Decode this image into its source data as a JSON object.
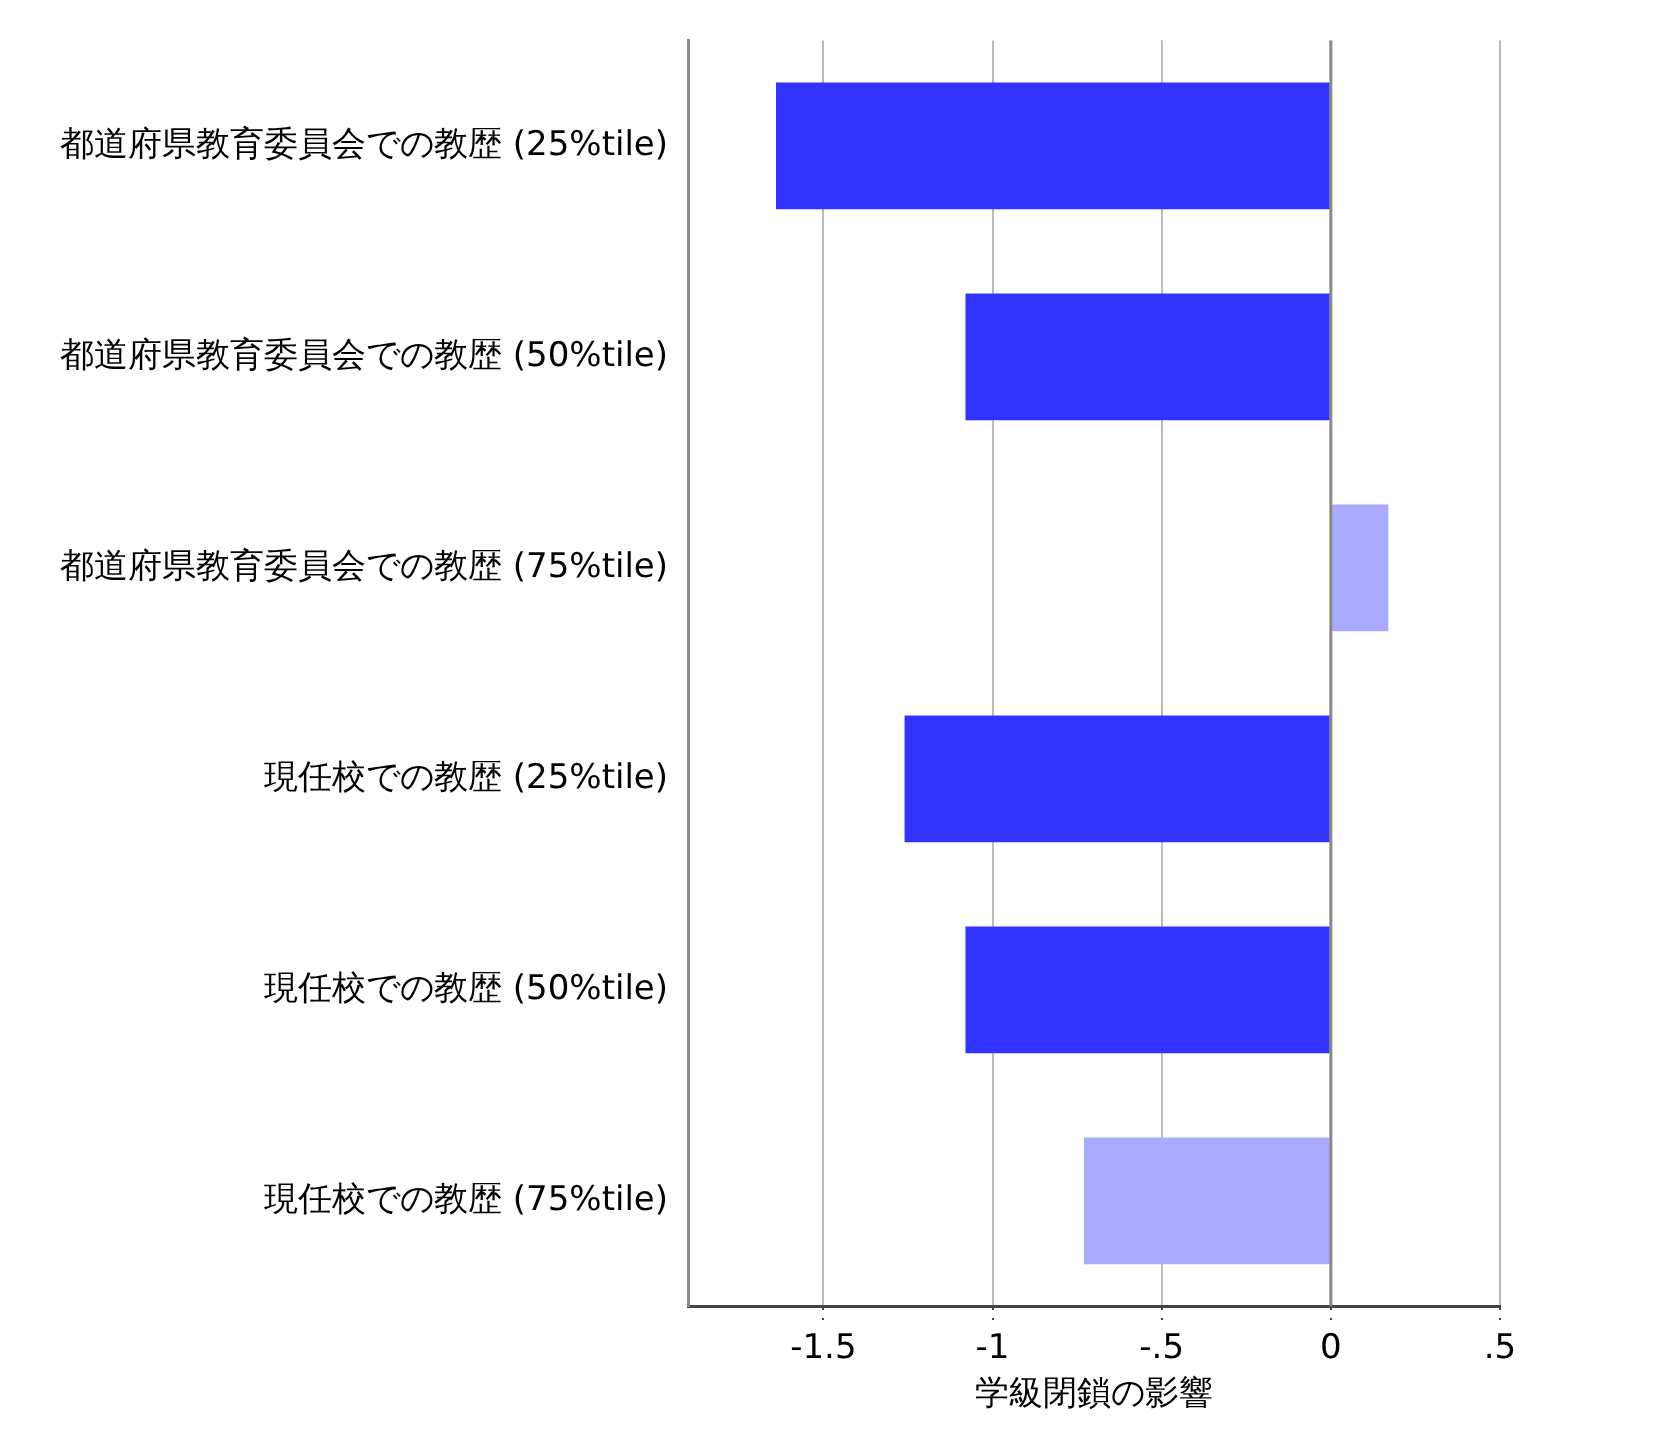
{
  "chart_data": {
    "type": "bar",
    "orientation": "horizontal",
    "xlabel": "学級閉鎖の影響",
    "categories": [
      "都道府県教育委員会での教歴 (25%tile)",
      "都道府県教育委員会での教歴 (50%tile)",
      "都道府県教育委員会での教歴 (75%tile)",
      "現任校での教歴 (25%tile)",
      "現任校での教歴 (50%tile)",
      "現任校での教歴 (75%tile)"
    ],
    "values": [
      -1.64,
      -1.08,
      0.17,
      -1.26,
      -1.08,
      -0.73
    ],
    "colors": [
      "#3333ff",
      "#3333ff",
      "#aaaaff",
      "#3333ff",
      "#3333ff",
      "#aaaaff"
    ],
    "xlim": [
      -1.9,
      0.5
    ],
    "xticks": [
      -1.5,
      -1,
      {
        "value": -0.5,
        "label": "-.5"
      },
      0,
      {
        "value": 0.5,
        "label": ".5"
      }
    ],
    "grid": "x",
    "ref_lines": [
      {
        "axis": "x",
        "value": 0,
        "color": "#888888"
      }
    ],
    "legend": false
  }
}
